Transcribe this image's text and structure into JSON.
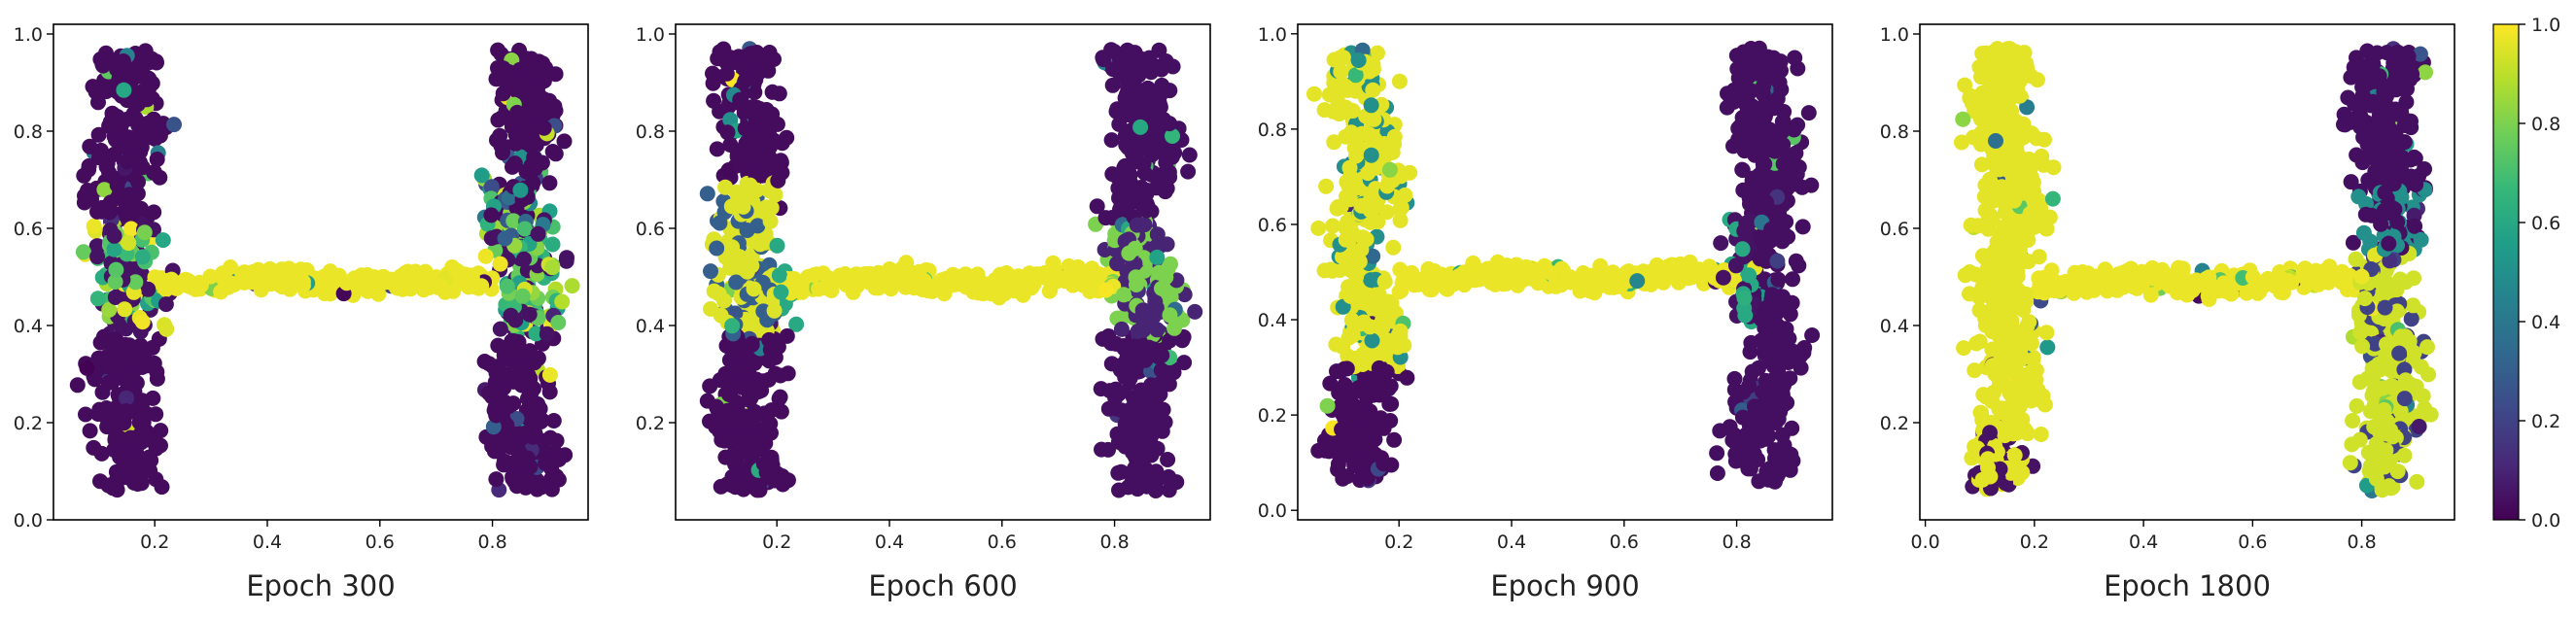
{
  "colormap": {
    "name": "viridis",
    "stops": [
      "#440154",
      "#482878",
      "#3e4989",
      "#31688e",
      "#26828e",
      "#1f9e89",
      "#35b779",
      "#6ece58",
      "#b5de2b",
      "#fde725"
    ],
    "ticks": [
      "0.0",
      "0.2",
      "0.4",
      "0.6",
      "0.8",
      "1.0"
    ],
    "range": [
      0,
      1
    ]
  },
  "chart_data": [
    {
      "type": "scatter",
      "title": "Epoch 300",
      "xlim": [
        0.02,
        0.97
      ],
      "ylim": [
        0.0,
        1.02
      ],
      "x_ticks": [
        0.2,
        0.4,
        0.6,
        0.8
      ],
      "x_tick_labels": [
        "0.2",
        "0.4",
        "0.6",
        "0.8"
      ],
      "y_ticks": [
        0.0,
        0.2,
        0.4,
        0.6,
        0.8,
        1.0
      ],
      "y_tick_labels": [
        "0.0",
        "0.2",
        "0.4",
        "0.6",
        "0.8",
        "1.0"
      ],
      "pattern": "letter H: left bar x≈0.15 and right bar x≈0.85 mostly ~0 (purple), crossbar y≈0.5 mostly ~1 (yellow), mixed values near joints",
      "color_profile": {
        "left_bar": 0.03,
        "right_bar": 0.08,
        "crossbar": 0.97,
        "joint_noise": 0.45
      }
    },
    {
      "type": "scatter",
      "title": "Epoch 600",
      "xlim": [
        0.02,
        0.97
      ],
      "ylim": [
        0.0,
        1.02
      ],
      "x_ticks": [
        0.2,
        0.4,
        0.6,
        0.8
      ],
      "x_tick_labels": [
        "0.2",
        "0.4",
        "0.6",
        "0.8"
      ],
      "y_ticks": [
        0.2,
        0.4,
        0.6,
        0.8,
        1.0
      ],
      "y_tick_labels": [
        "0.2",
        "0.4",
        "0.6",
        "0.8",
        "1.0"
      ],
      "pattern": "letter H: bars mostly purple with yellow spreading into the left bar around the crossbar, crossbar yellow",
      "color_profile": {
        "left_bar": 0.12,
        "right_bar": 0.1,
        "crossbar": 0.97,
        "joint_noise": 0.5
      }
    },
    {
      "type": "scatter",
      "title": "Epoch 900",
      "xlim": [
        0.02,
        0.97
      ],
      "ylim": [
        -0.02,
        1.02
      ],
      "x_ticks": [
        0.2,
        0.4,
        0.6,
        0.8
      ],
      "x_tick_labels": [
        "0.2",
        "0.4",
        "0.6",
        "0.8"
      ],
      "y_ticks": [
        0.0,
        0.2,
        0.4,
        0.6,
        0.8,
        1.0
      ],
      "y_tick_labels": [
        "0.0",
        "0.2",
        "0.4",
        "0.6",
        "0.8",
        "1.0"
      ],
      "pattern": "letter H: left bar yellow in its upper part and purple at the bottom, right bar purple, crossbar yellow",
      "color_profile": {
        "left_bar_upper": 0.95,
        "left_bar_lower": 0.05,
        "right_bar": 0.06,
        "crossbar": 0.97,
        "joint_noise": 0.4
      }
    },
    {
      "type": "scatter",
      "title": "Epoch 1800",
      "xlim": [
        -0.01,
        0.97
      ],
      "ylim": [
        0.0,
        1.02
      ],
      "x_ticks": [
        0.0,
        0.2,
        0.4,
        0.6,
        0.8
      ],
      "x_tick_labels": [
        "0.0",
        "0.2",
        "0.4",
        "0.6",
        "0.8"
      ],
      "y_ticks": [
        0.2,
        0.4,
        0.6,
        0.8,
        1.0
      ],
      "y_tick_labels": [
        "0.2",
        "0.4",
        "0.6",
        "0.8",
        "1.0"
      ],
      "pattern": "letter H: left bar and crossbar yellow, right bar purple on top and yellow below the crossbar",
      "color_profile": {
        "left_bar": 0.96,
        "right_bar_upper": 0.04,
        "right_bar_lower": 0.93,
        "crossbar": 0.97,
        "joint_noise": 0.35
      }
    }
  ]
}
